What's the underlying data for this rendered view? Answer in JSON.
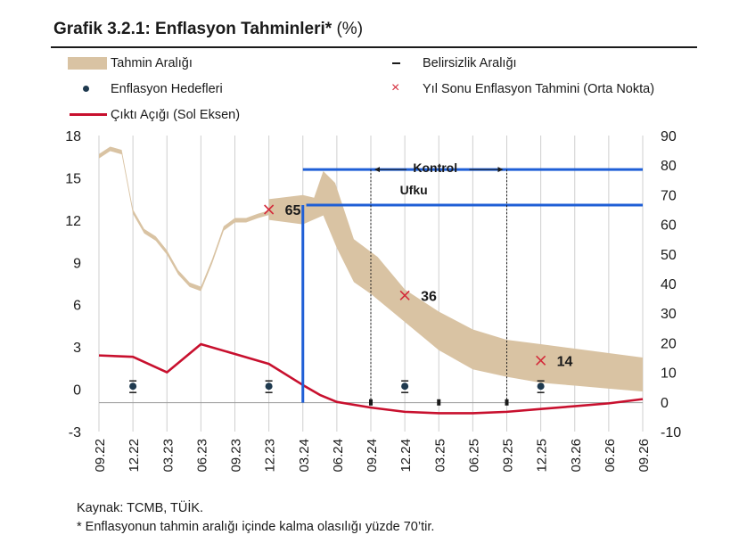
{
  "header": {
    "title_bold": "Grafik 3.2.1: Enflasyon Tahminleri*",
    "title_unit": "(%)"
  },
  "legend": {
    "band": "Tahmin Aralığı",
    "range": "Belirsizlik Aralığı",
    "targets": "Enflasyon Hedefleri",
    "yearend": "Yıl Sonu Enflasyon Tahmini (Orta Nokta)",
    "gap": "Çıktı Açığı (Sol Eksen)"
  },
  "footer": {
    "source": "Kaynak: TCMB, TÜİK.",
    "note": "* Enflasyonun tahmin aralığı içinde kalma olasılığı yüzde 70’tir."
  },
  "colors": {
    "band": "#d9c3a3",
    "output_gap": "#c8102e",
    "marker_x": "#d42b3a",
    "target_dot": "#1f3a4f",
    "horizon_blue": "#1f5fd6"
  },
  "chart_data": {
    "type": "line",
    "x_ticks": [
      "09.22",
      "12.22",
      "03.23",
      "06.23",
      "09.23",
      "12.23",
      "03.24",
      "06.24",
      "09.24",
      "12.24",
      "03.25",
      "06.25",
      "09.25",
      "12.25",
      "03.26",
      "06.26",
      "09.26"
    ],
    "left_axis": {
      "min": -3,
      "max": 18,
      "ticks": [
        "-3",
        "0",
        "3",
        "6",
        "9",
        "12",
        "15",
        "18"
      ]
    },
    "right_axis": {
      "min": -10,
      "max": 90,
      "ticks": [
        "-10",
        "0",
        "10",
        "20",
        "30",
        "40",
        "50",
        "60",
        "70",
        "80",
        "90"
      ]
    },
    "grid": "vertical",
    "legend_placement": "top",
    "forecast_band": {
      "name": "Tahmin Aralığı",
      "axis": "right",
      "points": [
        {
          "x": 0.0,
          "y": 83.0
        },
        {
          "x": 0.33,
          "y": 85.5
        },
        {
          "x": 0.67,
          "y": 84.4
        },
        {
          "x": 1.0,
          "y": 64.3
        },
        {
          "x": 1.33,
          "y": 57.7
        },
        {
          "x": 1.67,
          "y": 55.2
        },
        {
          "x": 2.0,
          "y": 50.5
        },
        {
          "x": 2.33,
          "y": 43.8
        },
        {
          "x": 2.67,
          "y": 39.6
        },
        {
          "x": 3.0,
          "y": 38.2
        },
        {
          "x": 3.33,
          "y": 47.5
        },
        {
          "x": 3.67,
          "y": 58.6
        },
        {
          "x": 4.0,
          "y": 61.4
        },
        {
          "x": 4.33,
          "y": 61.4
        },
        {
          "x": 4.67,
          "y": 62.8
        },
        {
          "x": 5.0,
          "y": 63.9
        }
      ],
      "upper": [
        {
          "x": 5.0,
          "y": 68.5
        },
        {
          "x": 6.0,
          "y": 69.9
        },
        {
          "x": 6.33,
          "y": 69.0
        },
        {
          "x": 6.6,
          "y": 78.0
        },
        {
          "x": 6.95,
          "y": 74.0
        },
        {
          "x": 7.5,
          "y": 55.0
        },
        {
          "x": 8.2,
          "y": 49.0
        },
        {
          "x": 9.0,
          "y": 38.0
        },
        {
          "x": 10.0,
          "y": 30.5
        },
        {
          "x": 11.0,
          "y": 24.5
        },
        {
          "x": 12.0,
          "y": 21.0
        },
        {
          "x": 13.0,
          "y": 19.5
        },
        {
          "x": 14.0,
          "y": 18.0
        },
        {
          "x": 15.0,
          "y": 16.5
        },
        {
          "x": 16.0,
          "y": 15.0
        }
      ],
      "lower": [
        {
          "x": 16.0,
          "y": 3.5
        },
        {
          "x": 15.0,
          "y": 4.5
        },
        {
          "x": 14.0,
          "y": 5.5
        },
        {
          "x": 13.0,
          "y": 6.5
        },
        {
          "x": 12.0,
          "y": 8.5
        },
        {
          "x": 11.0,
          "y": 11.0
        },
        {
          "x": 10.0,
          "y": 17.5
        },
        {
          "x": 9.0,
          "y": 27.0
        },
        {
          "x": 8.0,
          "y": 36.5
        },
        {
          "x": 7.5,
          "y": 40.5
        },
        {
          "x": 7.0,
          "y": 52.0
        },
        {
          "x": 6.6,
          "y": 63.0
        },
        {
          "x": 6.0,
          "y": 60.0
        },
        {
          "x": 5.0,
          "y": 61.5
        }
      ]
    },
    "output_gap": {
      "name": "Çıktı Açığı (Sol Eksen)",
      "axis": "left",
      "points": [
        {
          "x": 0,
          "y": 2.4
        },
        {
          "x": 1,
          "y": 2.3
        },
        {
          "x": 2,
          "y": 1.2
        },
        {
          "x": 3,
          "y": 3.2
        },
        {
          "x": 4,
          "y": 2.5
        },
        {
          "x": 5,
          "y": 1.8
        },
        {
          "x": 6,
          "y": 0.3
        },
        {
          "x": 6.5,
          "y": -0.4
        },
        {
          "x": 7,
          "y": -0.9
        },
        {
          "x": 8,
          "y": -1.3
        },
        {
          "x": 9,
          "y": -1.6
        },
        {
          "x": 10,
          "y": -1.7
        },
        {
          "x": 11,
          "y": -1.7
        },
        {
          "x": 12,
          "y": -1.6
        },
        {
          "x": 13,
          "y": -1.4
        },
        {
          "x": 14,
          "y": -1.2
        },
        {
          "x": 15,
          "y": -1.0
        },
        {
          "x": 16,
          "y": -0.7
        }
      ]
    },
    "inflation_targets": {
      "name": "Enflasyon Hedefleri",
      "axis": "right",
      "points": [
        {
          "x": 1,
          "y": 5
        },
        {
          "x": 5,
          "y": 5
        },
        {
          "x": 9,
          "y": 5
        },
        {
          "x": 13,
          "y": 5
        }
      ]
    },
    "uncertainty_marks": {
      "name": "Belirsizlik Aralığı",
      "axis": "right",
      "points": [
        {
          "x": 8,
          "y": 0
        },
        {
          "x": 10,
          "y": 0
        },
        {
          "x": 12,
          "y": 0
        }
      ]
    },
    "year_end_forecasts": {
      "name": "Yıl Sonu Enflasyon Tahmini (Orta Nokta)",
      "axis": "right",
      "points": [
        {
          "x": 5,
          "y": 65,
          "label": "65"
        },
        {
          "x": 9,
          "y": 36,
          "label": "36"
        },
        {
          "x": 13,
          "y": 14,
          "label": "14"
        }
      ]
    },
    "policy_horizon": {
      "label_line1": "Kontrol",
      "label_line2": "Ufku",
      "upper_line": {
        "x_from": 6,
        "x_to": 16,
        "y": 78.5
      },
      "lower_line": {
        "x_from": 6.1,
        "x_to": 16,
        "y": 66.5
      },
      "vertical_x": 6.0,
      "dotted_x": [
        8,
        12
      ]
    }
  }
}
